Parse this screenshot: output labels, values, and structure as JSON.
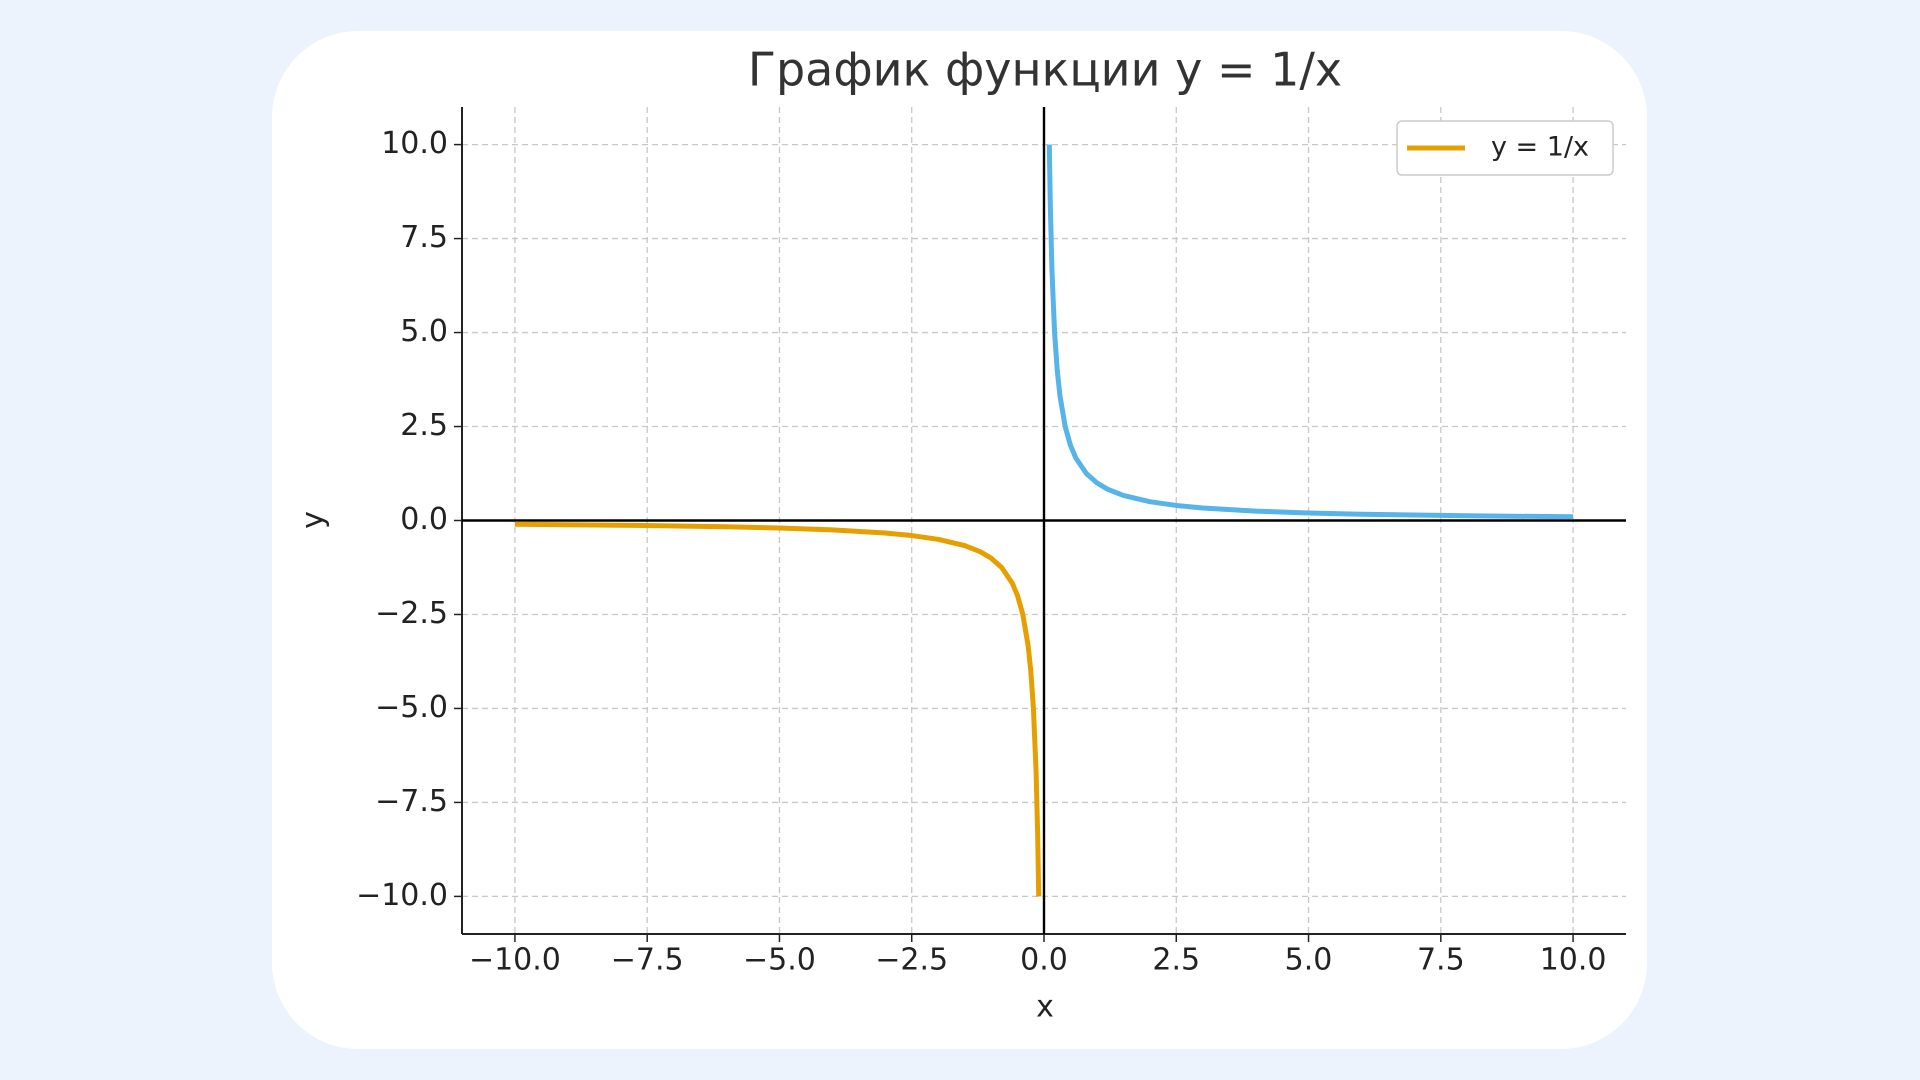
{
  "chart_data": {
    "type": "line",
    "title": "График функции y = 1/x",
    "x_label": "x",
    "y_label": "y",
    "series": [
      {
        "name": "y = 1/x",
        "color": "#e69f00",
        "x": [
          -10,
          -8,
          -6,
          -5,
          -4,
          -3,
          -2.5,
          -2,
          -1.5,
          -1.2,
          -1,
          -0.8,
          -0.6,
          -0.5,
          -0.4,
          -0.3,
          -0.25,
          -0.2,
          -0.15,
          -0.12,
          -0.1
        ],
        "values": [
          -0.1,
          -0.125,
          -0.1667,
          -0.2,
          -0.25,
          -0.3333,
          -0.4,
          -0.5,
          -0.6667,
          -0.8333,
          -1,
          -1.25,
          -1.6667,
          -2,
          -2.5,
          -3.3333,
          -4,
          -5,
          -6.6667,
          -8.3333,
          -10
        ]
      },
      {
        "color": "#56b4e9",
        "x": [
          0.1,
          0.12,
          0.15,
          0.2,
          0.25,
          0.3,
          0.4,
          0.5,
          0.6,
          0.8,
          1,
          1.2,
          1.5,
          2,
          2.5,
          3,
          4,
          5,
          6,
          8,
          10
        ],
        "values": [
          10,
          8.3333,
          6.6667,
          5,
          4,
          3.3333,
          2.5,
          2,
          1.6667,
          1.25,
          1,
          0.8333,
          0.6667,
          0.5,
          0.4,
          0.3333,
          0.25,
          0.2,
          0.1667,
          0.125,
          0.1
        ]
      }
    ],
    "xlim": [
      -11,
      11
    ],
    "ylim": [
      -11,
      11
    ],
    "xticks": [
      {
        "value": -10,
        "label": "−10.0"
      },
      {
        "value": -7.5,
        "label": "−7.5"
      },
      {
        "value": -5,
        "label": "−5.0"
      },
      {
        "value": -2.5,
        "label": "−2.5"
      },
      {
        "value": 0,
        "label": "0.0"
      },
      2.5,
      {
        "value": 5,
        "label": "5.0"
      },
      7.5,
      {
        "value": 10,
        "label": "10.0"
      }
    ],
    "yticks": [
      {
        "value": -10,
        "label": "−10.0"
      },
      {
        "value": -7.5,
        "label": "−7.5"
      },
      {
        "value": -5,
        "label": "−5.0"
      },
      {
        "value": -2.5,
        "label": "−2.5"
      },
      {
        "value": 0,
        "label": "0.0"
      },
      2.5,
      {
        "value": 5,
        "label": "5.0"
      },
      7.5,
      {
        "value": 10,
        "label": "10.0"
      }
    ],
    "grid": true,
    "zero_lines": true,
    "legend": "upper right"
  }
}
